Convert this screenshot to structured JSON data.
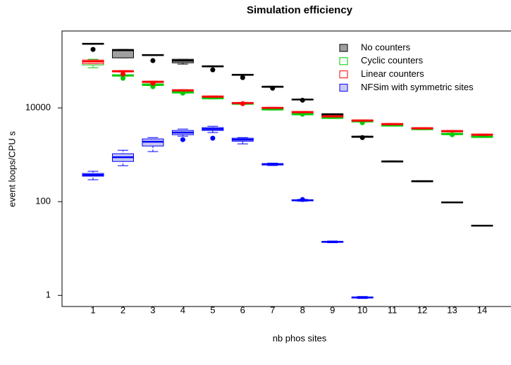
{
  "chart_data": {
    "type": "boxplot",
    "title": "Simulation efficiency",
    "x_label": "nb phos sites",
    "y_label": "event loops/CPU s",
    "categories": [
      "1",
      "2",
      "3",
      "4",
      "5",
      "6",
      "7",
      "8",
      "9",
      "10",
      "11",
      "12",
      "13",
      "14"
    ],
    "log_scale": "y",
    "ylim": [
      0.58,
      437000
    ],
    "yticks": [
      1,
      100,
      {
        "value": 10000,
        "label": "10000"
      }
    ],
    "legend": "top-right",
    "series": [
      {
        "name": "No counters",
        "color": "#000000",
        "fill": "#a0a0a0",
        "median": [
          233000,
          170000,
          134000,
          102000,
          77100,
          50900,
          28300,
          15100,
          7320,
          2420,
          720,
          273,
          96.6,
          30.8
        ],
        "q1": [
          228000,
          117000,
          131000,
          91600,
          75000,
          49500,
          27500,
          14700,
          6800,
          2350,
          700,
          265,
          94,
          30
        ],
        "q3": [
          238000,
          177000,
          137000,
          109000,
          79000,
          52000,
          29000,
          15500,
          7500,
          2500,
          740,
          280,
          99,
          31.5
        ],
        "whisker_low": [
          228000,
          117000,
          131000,
          85800,
          75000,
          49500,
          27500,
          14700,
          6800,
          2350,
          700,
          265,
          94,
          30
        ],
        "whisker_high": [
          238000,
          177000,
          137000,
          109000,
          79000,
          52000,
          29000,
          15500,
          7500,
          2500,
          740,
          280,
          99,
          31.5
        ],
        "outliers": [
          177000,
          null,
          102000,
          null,
          64900,
          44300,
          26300,
          14600,
          null,
          2330,
          null,
          null,
          null,
          null
        ]
      },
      {
        "name": "Cyclic counters",
        "color": "#00cc00",
        "fill": "#ffffff",
        "median": [
          91600,
          49200,
          31300,
          21400,
          16200,
          12300,
          9330,
          7320,
          6160,
          5180,
          4210,
          3540,
          2780,
          2420
        ],
        "q1": [
          82600,
          47500,
          30000,
          20700,
          15600,
          11900,
          9000,
          7100,
          5950,
          5000,
          4080,
          3420,
          2680,
          2340
        ],
        "q3": [
          102000,
          51000,
          32500,
          22200,
          16800,
          12700,
          9650,
          7550,
          6370,
          5360,
          4350,
          3660,
          2880,
          2500
        ],
        "whisker_low": [
          71900,
          47500,
          30000,
          20700,
          15600,
          11900,
          9000,
          7100,
          5950,
          5000,
          4080,
          3420,
          2680,
          2340
        ],
        "whisker_high": [
          109000,
          51000,
          32500,
          22200,
          16800,
          12700,
          9650,
          7550,
          6370,
          5360,
          4350,
          3660,
          2880,
          2500
        ],
        "outliers": [
          null,
          42800,
          28300,
          20700,
          null,
          null,
          null,
          7320,
          null,
          4830,
          null,
          null,
          2680,
          null
        ]
      },
      {
        "name": "Linear counters",
        "color": "#ff0000",
        "fill": "#ffffff",
        "median": [
          98000,
          60500,
          36000,
          23700,
          17400,
          12700,
          10000,
          8120,
          6600,
          5370,
          4510,
          3670,
          3190,
          2680
        ],
        "q1": [
          88400,
          58500,
          34800,
          22900,
          16800,
          12300,
          9700,
          7850,
          6380,
          5190,
          4360,
          3550,
          3080,
          2590
        ],
        "q3": [
          105000,
          62500,
          37200,
          24500,
          18000,
          13100,
          10300,
          8400,
          6820,
          5560,
          4660,
          3800,
          3300,
          2770
        ],
        "whisker_low": [
          88400,
          58500,
          34800,
          22900,
          16800,
          12300,
          9700,
          7850,
          6380,
          5190,
          4360,
          3550,
          3080,
          2590
        ],
        "whisker_high": [
          105000,
          62500,
          37200,
          24500,
          18000,
          13100,
          10300,
          8400,
          6820,
          5560,
          4660,
          3800,
          3300,
          2770
        ],
        "outliers": [
          null,
          52600,
          33500,
          null,
          null,
          12300,
          null,
          null,
          null,
          null,
          null,
          null,
          null,
          null
        ]
      },
      {
        "name": "NFSim with symmetric sites",
        "color": "#0000ff",
        "fill": "#c8c8f0",
        "median": [
          372,
          886,
          1900,
          2980,
          3540,
          2110,
          626,
          107,
          13.9,
          0.9,
          null,
          null,
          null,
          null
        ],
        "q1": [
          350,
          720,
          1540,
          2680,
          3300,
          1950,
          605,
          104,
          13.5,
          0.88,
          null,
          null,
          null,
          null
        ],
        "q3": [
          400,
          1054,
          2180,
          3300,
          3800,
          2260,
          650,
          110,
          14.3,
          0.93,
          null,
          null,
          null,
          null
        ],
        "whisker_low": [
          294,
          586,
          1170,
          2500,
          2980,
          1710,
          590,
          102,
          13.3,
          0.86,
          null,
          null,
          null,
          null
        ],
        "whisker_high": [
          445,
          1250,
          2330,
          3540,
          4060,
          2330,
          665,
          112,
          14.5,
          0.95,
          null,
          null,
          null,
          null
        ],
        "outliers": [
          null,
          null,
          null,
          2110,
          2260,
          null,
          null,
          111,
          null,
          null,
          null,
          null,
          null,
          null
        ]
      }
    ]
  }
}
